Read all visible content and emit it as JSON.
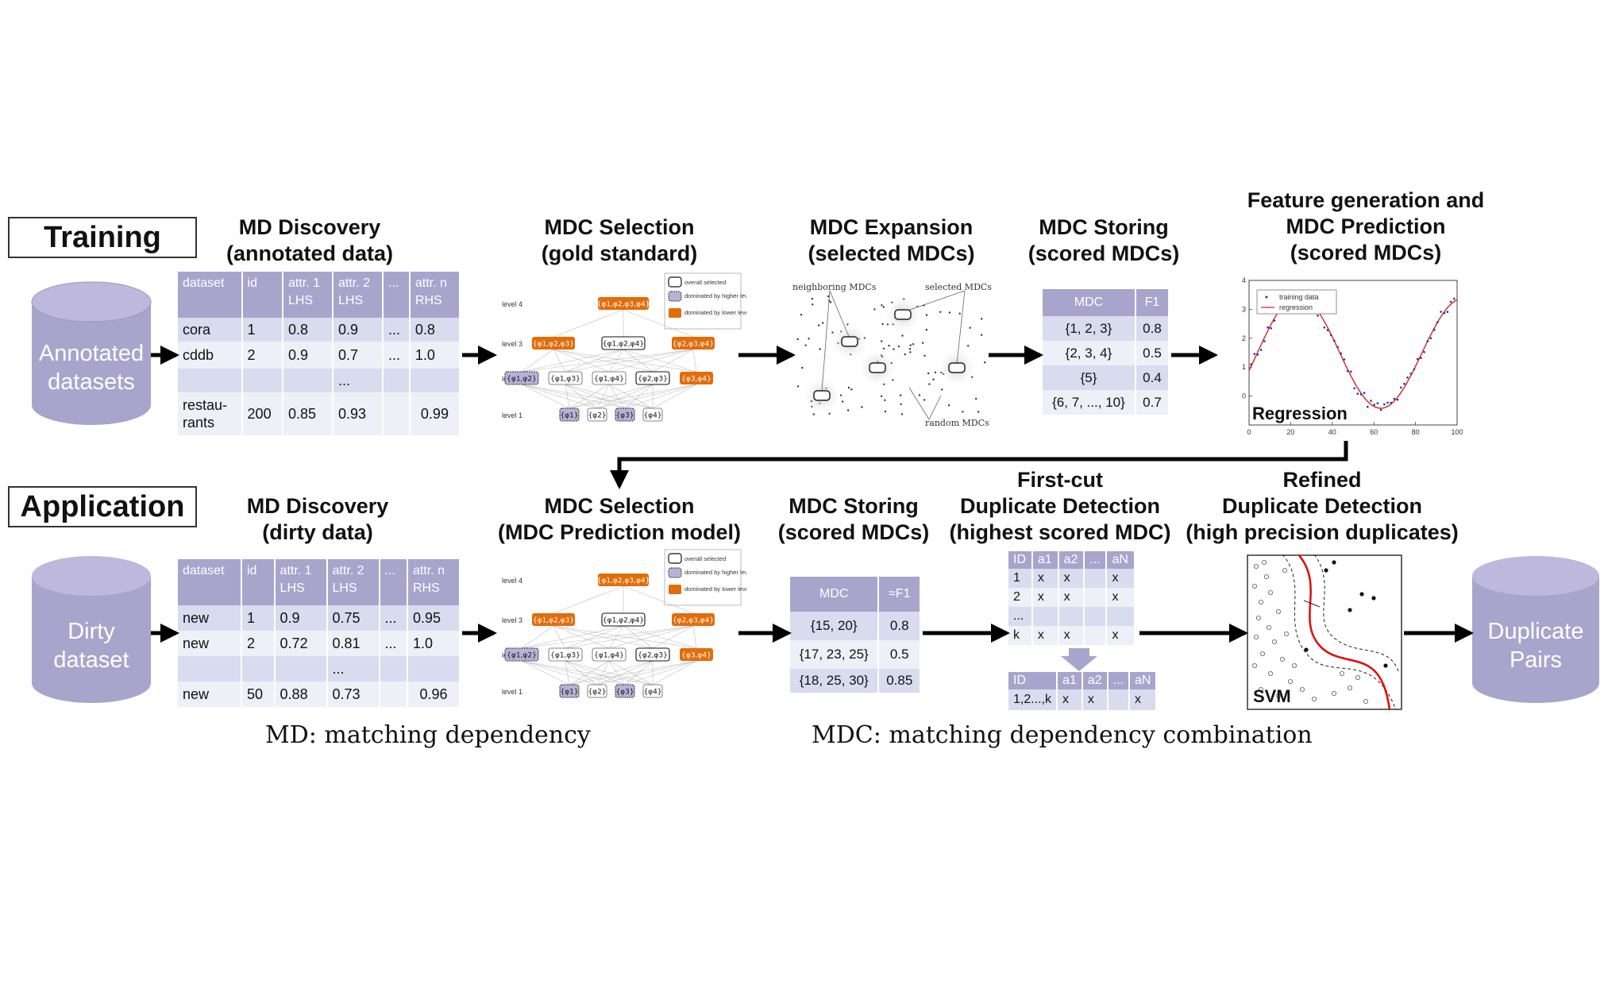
{
  "training": {
    "label": "Training",
    "input_store": "Annotated datasets",
    "steps": {
      "md_discovery": [
        "MD Discovery",
        "(annotated data)"
      ],
      "mdc_selection": [
        "MDC Selection",
        "(gold standard)"
      ],
      "mdc_expansion": [
        "MDC Expansion",
        "(selected MDCs)"
      ],
      "mdc_storing": [
        "MDC Storing",
        "(scored MDCs)"
      ],
      "prediction": [
        "Feature generation and",
        "MDC Prediction",
        "(scored MDCs)"
      ]
    },
    "md_table": {
      "headers": [
        [
          "dataset"
        ],
        [
          "id"
        ],
        [
          "attr. 1",
          "LHS"
        ],
        [
          "attr. 2",
          "LHS"
        ],
        [
          "..."
        ],
        [
          "attr. n",
          "RHS"
        ]
      ],
      "rows": [
        [
          "cora",
          "1",
          "0.8",
          "0.9",
          "...",
          "0.8"
        ],
        [
          "cddb",
          "2",
          "0.9",
          "0.7",
          "...",
          "1.0"
        ],
        [
          "",
          "",
          "",
          "...",
          "",
          ""
        ],
        [
          "restau-\nrants",
          "200",
          "0.85",
          "0.93",
          "",
          "0.99"
        ]
      ]
    },
    "mdc_table": {
      "headers": [
        "MDC",
        "F1"
      ],
      "rows": [
        [
          "{1, 2, 3}",
          "0.8"
        ],
        [
          "{2, 3, 4}",
          "0.5"
        ],
        [
          "{5}",
          "0.4"
        ],
        [
          "{6, 7, ..., 10}",
          "0.7"
        ]
      ]
    },
    "expansion_labels": {
      "neighboring": "neighboring MDCs",
      "selected": "selected MDCs",
      "random": "random MDCs"
    },
    "regression": {
      "label": "Regression",
      "legend": [
        "training data",
        "regression"
      ],
      "x_ticks": [
        "0",
        "20",
        "40",
        "60",
        "80",
        "100"
      ],
      "y_ticks": [
        "4",
        "3",
        "2",
        "1",
        "0"
      ]
    }
  },
  "lattice": {
    "levels": [
      "level 4",
      "level 3",
      "level 2",
      "level 1"
    ],
    "legend": [
      "overall selected",
      "dominated by higher level",
      "dominated by lower level"
    ],
    "level4": [
      "{φ1,φ2,φ3,φ4}"
    ],
    "level3": [
      "{φ1,φ2,φ3}",
      "{φ1,φ2,φ4}",
      "{φ2,φ3,φ4}"
    ],
    "level2": [
      "{φ1,φ2}",
      "{φ1,φ3}",
      "{φ1,φ4}",
      "{φ2,φ3}",
      "{φ3,φ4}"
    ],
    "level1": [
      "{φ1}",
      "{φ2}",
      "{φ3}",
      "{φ4}"
    ]
  },
  "application": {
    "label": "Application",
    "input_store": "Dirty dataset",
    "output_store": "Duplicate Pairs",
    "steps": {
      "md_discovery": [
        "MD Discovery",
        "(dirty data)"
      ],
      "mdc_selection": [
        "MDC Selection",
        "(MDC Prediction model)"
      ],
      "mdc_storing": [
        "MDC Storing",
        "(scored MDCs)"
      ],
      "first_cut": [
        "First-cut",
        "Duplicate Detection",
        "(highest scored MDC)"
      ],
      "refined": [
        "Refined",
        "Duplicate Detection",
        "(high precision duplicates)"
      ]
    },
    "md_table": {
      "headers": [
        [
          "dataset"
        ],
        [
          "id"
        ],
        [
          "attr. 1",
          "LHS"
        ],
        [
          "attr. 2",
          "LHS"
        ],
        [
          "..."
        ],
        [
          "attr. n",
          "RHS"
        ]
      ],
      "rows": [
        [
          "new",
          "1",
          "0.9",
          "0.75",
          "...",
          "0.95"
        ],
        [
          "new",
          "2",
          "0.72",
          "0.81",
          "...",
          "1.0"
        ],
        [
          "",
          "",
          "",
          "...",
          "",
          ""
        ],
        [
          "new",
          "50",
          "0.88",
          "0.73",
          "",
          "0.96"
        ]
      ]
    },
    "mdc_table": {
      "headers": [
        "MDC",
        "≈F1"
      ],
      "rows": [
        [
          "{15, 20}",
          "0.8"
        ],
        [
          "{17, 23, 25}",
          "0.5"
        ],
        [
          "{18, 25, 30}",
          "0.85"
        ]
      ]
    },
    "first_cut_table": {
      "headers": [
        "ID",
        "a1",
        "a2",
        "...",
        "aN"
      ],
      "rows": [
        [
          "1",
          "x",
          "x",
          "",
          "x"
        ],
        [
          "2",
          "x",
          "x",
          "",
          "x"
        ],
        [
          "...",
          "",
          "",
          "",
          ""
        ],
        [
          "k",
          "x",
          "x",
          "",
          "x"
        ]
      ]
    },
    "merged_table": {
      "headers": [
        "ID",
        "a1",
        "a2",
        "...",
        "aN"
      ],
      "rows": [
        [
          "1,2...,k",
          "x",
          "x",
          "",
          "x"
        ]
      ]
    },
    "svm_label": "SVM"
  },
  "footnotes": {
    "md": "MD: matching dependency",
    "mdc": "MDC: matching dependency combination"
  },
  "colors": {
    "cylinder": "#a9a4cc",
    "table_header": "#a9a4cc",
    "row_odd": "#d8dcee",
    "row_even": "#eef0f8",
    "orange": "#e36c0a",
    "dominated_higher": "#b8b2d8",
    "regression_line": "#e02020",
    "data_points": "#2030c0",
    "svm_boundary": "#e01010"
  }
}
